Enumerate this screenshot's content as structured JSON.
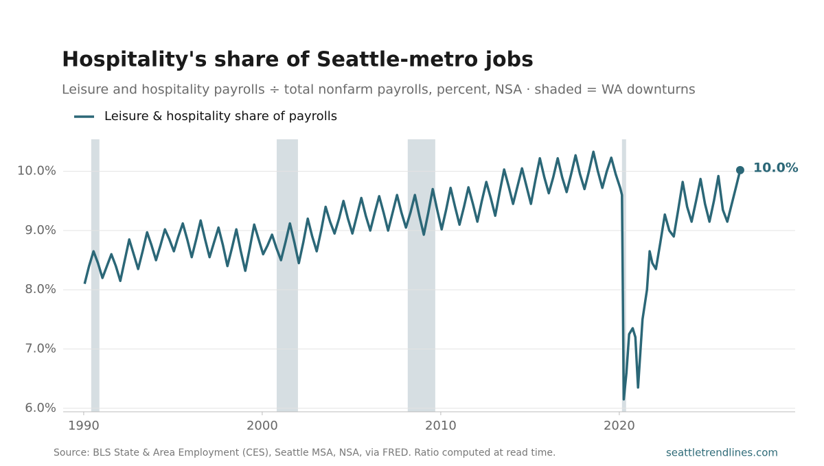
{
  "chart_data": {
    "type": "line",
    "title": "Hospitality's share of Seattle-metro jobs",
    "subtitle": "Leisure and hospitality payrolls ÷ total nonfarm payrolls, percent, NSA · shaded = WA downturns",
    "source": "Source: BLS State & Area Employment (CES), Seattle MSA, NSA, via FRED. Ratio computed at read time.",
    "credit": "seattletrendlines.com",
    "legend": "upper left",
    "grid": true,
    "end_label": "10.0%",
    "shaded_color": "#d6dee2",
    "shaded_periods": [
      {
        "start": 1990.42,
        "end": 1990.88
      },
      {
        "start": 2000.81,
        "end": 2002.0
      },
      {
        "start": 2008.15,
        "end": 2009.69
      },
      {
        "start": 2020.15,
        "end": 2020.38
      }
    ],
    "xlim": [
      1988.85,
      2029.85
    ],
    "xticks": [
      1990,
      2000,
      2010,
      2020
    ],
    "ylim": [
      5.94,
      10.54
    ],
    "yticks": [
      {
        "value": 6,
        "label": "6.0%"
      },
      {
        "value": 7,
        "label": "7.0%"
      },
      {
        "value": 8,
        "label": "8.0%"
      },
      {
        "value": 9,
        "label": "9.0%"
      },
      {
        "value": 10,
        "label": "10.0%"
      }
    ],
    "x": [
      1990.05,
      1990.3,
      1990.55,
      1990.8,
      1991.05,
      1991.3,
      1991.55,
      1991.8,
      1992.05,
      1992.3,
      1992.55,
      1992.8,
      1993.05,
      1993.3,
      1993.55,
      1993.8,
      1994.05,
      1994.3,
      1994.55,
      1994.8,
      1995.05,
      1995.3,
      1995.55,
      1995.8,
      1996.05,
      1996.3,
      1996.55,
      1996.8,
      1997.05,
      1997.3,
      1997.55,
      1997.8,
      1998.05,
      1998.3,
      1998.55,
      1998.8,
      1999.05,
      1999.3,
      1999.55,
      1999.8,
      2000.05,
      2000.3,
      2000.55,
      2000.8,
      2001.05,
      2001.3,
      2001.55,
      2001.8,
      2002.05,
      2002.3,
      2002.55,
      2002.8,
      2003.05,
      2003.3,
      2003.55,
      2003.8,
      2004.05,
      2004.3,
      2004.55,
      2004.8,
      2005.05,
      2005.3,
      2005.55,
      2005.8,
      2006.05,
      2006.3,
      2006.55,
      2006.8,
      2007.05,
      2007.3,
      2007.55,
      2007.8,
      2008.05,
      2008.3,
      2008.55,
      2008.8,
      2009.05,
      2009.3,
      2009.55,
      2009.8,
      2010.05,
      2010.3,
      2010.55,
      2010.8,
      2011.05,
      2011.3,
      2011.55,
      2011.8,
      2012.05,
      2012.3,
      2012.55,
      2012.8,
      2013.05,
      2013.3,
      2013.55,
      2013.8,
      2014.05,
      2014.3,
      2014.55,
      2014.8,
      2015.05,
      2015.3,
      2015.55,
      2015.8,
      2016.05,
      2016.3,
      2016.55,
      2016.8,
      2017.05,
      2017.3,
      2017.55,
      2017.8,
      2018.05,
      2018.3,
      2018.55,
      2018.8,
      2019.05,
      2019.3,
      2019.55,
      2019.8,
      2020.05,
      2020.15,
      2020.25,
      2020.4,
      2020.55,
      2020.75,
      2020.9,
      2021.05,
      2021.3,
      2021.55,
      2021.7,
      2021.85,
      2022.05,
      2022.3,
      2022.55,
      2022.8,
      2023.05,
      2023.3,
      2023.55,
      2023.8,
      2024.05,
      2024.3,
      2024.55,
      2024.8,
      2025.05,
      2025.3,
      2025.55,
      2025.8,
      2026.05,
      2026.3,
      2026.55,
      2026.77
    ],
    "series": [
      {
        "name": "Leisure & hospitality share of payrolls",
        "color": "#2b6777",
        "values": [
          8.1,
          8.4,
          8.65,
          8.45,
          8.2,
          8.4,
          8.6,
          8.4,
          8.15,
          8.5,
          8.85,
          8.6,
          8.35,
          8.65,
          8.97,
          8.75,
          8.5,
          8.75,
          9.02,
          8.85,
          8.65,
          8.9,
          9.12,
          8.85,
          8.55,
          8.85,
          9.17,
          8.85,
          8.55,
          8.8,
          9.05,
          8.75,
          8.4,
          8.7,
          9.02,
          8.65,
          8.32,
          8.7,
          9.1,
          8.85,
          8.6,
          8.75,
          8.93,
          8.7,
          8.5,
          8.8,
          9.12,
          8.8,
          8.45,
          8.8,
          9.2,
          8.9,
          8.65,
          9.0,
          9.4,
          9.15,
          8.95,
          9.2,
          9.5,
          9.2,
          8.95,
          9.25,
          9.55,
          9.25,
          9.0,
          9.3,
          9.58,
          9.3,
          9.0,
          9.3,
          9.6,
          9.3,
          9.05,
          9.3,
          9.6,
          9.25,
          8.93,
          9.3,
          9.7,
          9.35,
          9.02,
          9.35,
          9.72,
          9.4,
          9.1,
          9.4,
          9.73,
          9.45,
          9.15,
          9.5,
          9.82,
          9.55,
          9.25,
          9.65,
          10.03,
          9.75,
          9.45,
          9.75,
          10.05,
          9.75,
          9.45,
          9.85,
          10.22,
          9.9,
          9.63,
          9.9,
          10.22,
          9.9,
          9.65,
          9.95,
          10.27,
          9.95,
          9.7,
          10.0,
          10.33,
          10.0,
          9.72,
          10.0,
          10.23,
          9.95,
          9.72,
          9.6,
          6.15,
          6.6,
          7.25,
          7.35,
          7.2,
          6.35,
          7.5,
          8.0,
          8.65,
          8.45,
          8.35,
          8.8,
          9.27,
          9.0,
          8.9,
          9.35,
          9.82,
          9.4,
          9.15,
          9.5,
          9.87,
          9.45,
          9.15,
          9.5,
          9.92,
          9.35,
          9.15,
          9.45,
          9.75,
          10.02
        ]
      }
    ]
  }
}
